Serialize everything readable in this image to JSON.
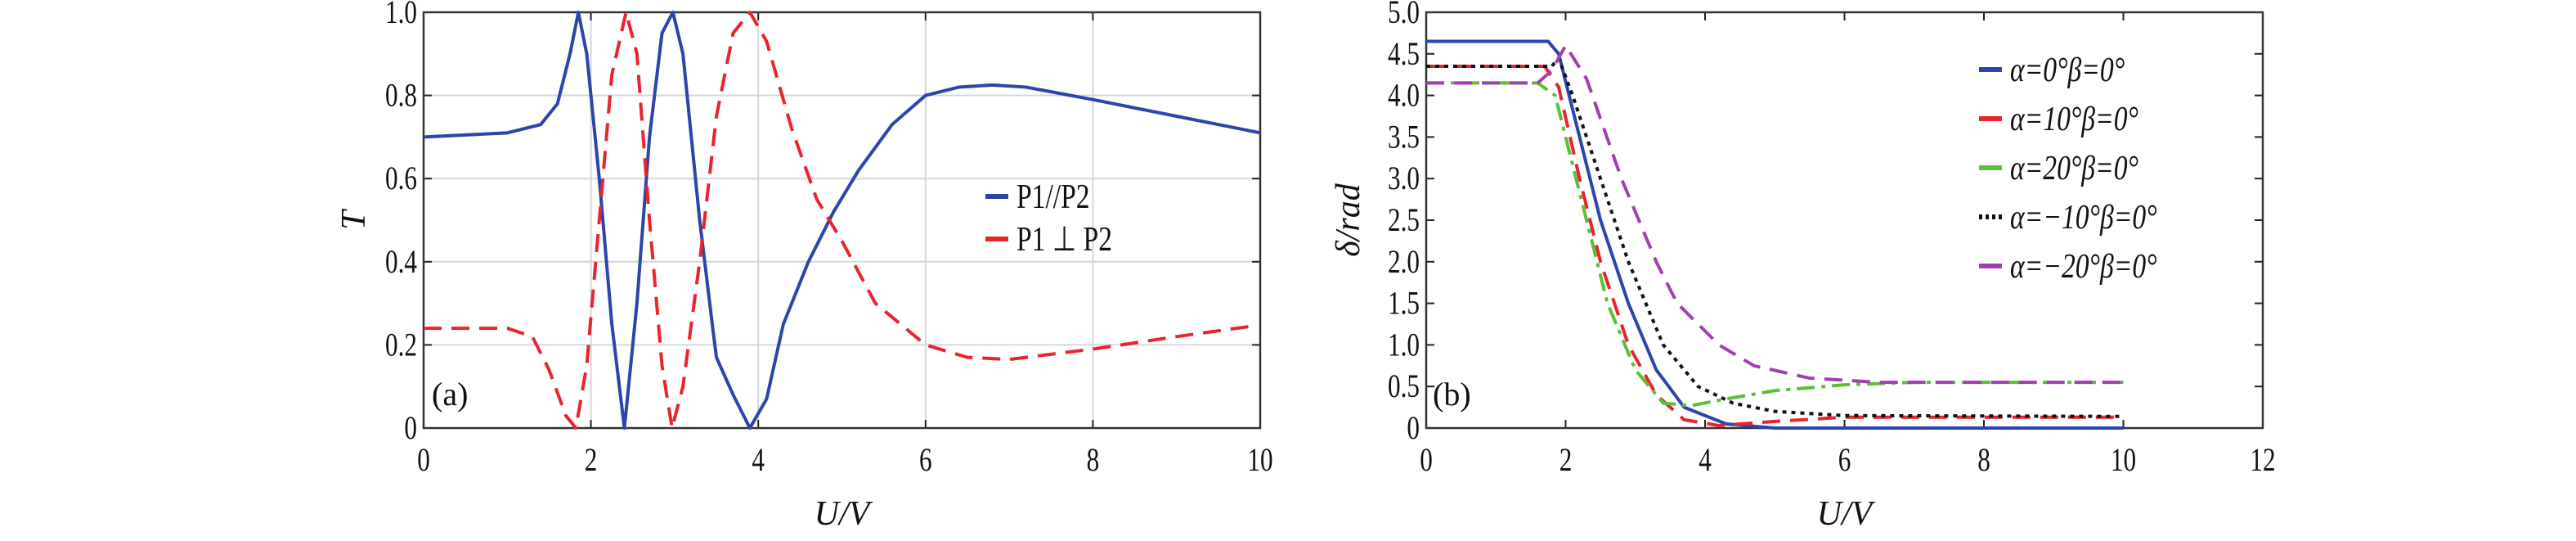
{
  "chart_data": [
    {
      "type": "line",
      "panel_label": "(a)",
      "xlabel": "U/V",
      "ylabel": "T",
      "xlim": [
        0,
        10
      ],
      "ylim": [
        0,
        1
      ],
      "xticks": [
        "0",
        "2",
        "4",
        "6",
        "8",
        "10"
      ],
      "yticks": [
        "0",
        "0.2",
        "0.4",
        "0.6",
        "0.8",
        "1.0"
      ],
      "grid": true,
      "legend_position": "center-right",
      "series": [
        {
          "name": "P1//P2",
          "color": "#2b45a8",
          "style": "solid",
          "x": [
            0,
            1,
            1.4,
            1.6,
            1.75,
            1.85,
            1.95,
            2.1,
            2.25,
            2.4,
            2.55,
            2.7,
            2.85,
            2.98,
            3.1,
            3.3,
            3.45,
            3.5,
            3.7,
            3.9,
            4.1,
            4.3,
            4.6,
            4.9,
            5.2,
            5.6,
            6,
            6.4,
            6.8,
            7.2,
            8,
            9,
            10
          ],
          "y": [
            0.7,
            0.71,
            0.73,
            0.78,
            0.9,
            1.0,
            0.9,
            0.6,
            0.25,
            0.0,
            0.3,
            0.7,
            0.95,
            1.0,
            0.9,
            0.5,
            0.25,
            0.17,
            0.08,
            0.0,
            0.07,
            0.25,
            0.4,
            0.52,
            0.62,
            0.73,
            0.8,
            0.82,
            0.825,
            0.82,
            0.79,
            0.75,
            0.71
          ]
        },
        {
          "name": "P1 ⊥ P2",
          "color": "#e8242e",
          "style": "dashed",
          "x": [
            0,
            1,
            1.3,
            1.5,
            1.7,
            1.82,
            1.95,
            2.1,
            2.25,
            2.42,
            2.55,
            2.7,
            2.85,
            2.97,
            3.1,
            3.3,
            3.5,
            3.7,
            3.9,
            4.1,
            4.4,
            4.7,
            5,
            5.4,
            6,
            6.5,
            7,
            8,
            9,
            9.9
          ],
          "y": [
            0.24,
            0.24,
            0.22,
            0.14,
            0.03,
            0.0,
            0.15,
            0.5,
            0.85,
            1.0,
            0.9,
            0.5,
            0.15,
            0.0,
            0.1,
            0.4,
            0.75,
            0.95,
            1.0,
            0.93,
            0.72,
            0.55,
            0.45,
            0.3,
            0.2,
            0.17,
            0.165,
            0.19,
            0.22,
            0.245
          ]
        }
      ]
    },
    {
      "type": "line",
      "panel_label": "(b)",
      "xlabel": "U/V",
      "ylabel": "δ/rad",
      "xlim": [
        0,
        12
      ],
      "ylim": [
        0,
        5
      ],
      "xticks": [
        "0",
        "2",
        "4",
        "6",
        "8",
        "10",
        "12"
      ],
      "yticks": [
        "0",
        "0.5",
        "1.0",
        "1.5",
        "2.0",
        "2.5",
        "3.0",
        "3.5",
        "4.0",
        "4.5",
        "5.0"
      ],
      "grid": false,
      "legend_position": "top-right",
      "series": [
        {
          "name": "α=0°β=0°",
          "color": "#2b45a8",
          "style": "solid",
          "x": [
            0,
            1.75,
            1.9,
            2.2,
            2.5,
            2.9,
            3.3,
            3.7,
            4.3,
            5,
            10
          ],
          "y": [
            4.65,
            4.65,
            4.5,
            3.5,
            2.5,
            1.5,
            0.7,
            0.25,
            0.05,
            0,
            0
          ]
        },
        {
          "name": "α=10°β=0°",
          "color": "#e8242e",
          "style": "dashed",
          "x": [
            0,
            1.7,
            1.9,
            2.2,
            2.5,
            2.9,
            3.3,
            3.7,
            4.2,
            5,
            6,
            10
          ],
          "y": [
            4.35,
            4.35,
            4.1,
            3.0,
            2.0,
            1.0,
            0.4,
            0.1,
            0.03,
            0.08,
            0.13,
            0.13
          ]
        },
        {
          "name": "α=20°β=0°",
          "color": "#5bbf3a",
          "style": "dashdot",
          "x": [
            0,
            1.6,
            1.85,
            2.0,
            2.3,
            2.6,
            3.0,
            3.4,
            3.8,
            4.3,
            5,
            6,
            7,
            10
          ],
          "y": [
            4.15,
            4.15,
            4.0,
            3.5,
            2.5,
            1.5,
            0.7,
            0.3,
            0.27,
            0.35,
            0.45,
            0.52,
            0.55,
            0.55
          ]
        },
        {
          "name": "α=−10°β=0°",
          "color": "#111111",
          "style": "dotted",
          "x": [
            0,
            1.8,
            1.9,
            2.1,
            2.5,
            2.9,
            3.4,
            3.9,
            4.4,
            5,
            6,
            10
          ],
          "y": [
            4.35,
            4.35,
            4.45,
            4.0,
            3.0,
            2.0,
            1.0,
            0.5,
            0.3,
            0.2,
            0.15,
            0.14
          ]
        },
        {
          "name": "α=−20°β=0°",
          "color": "#a040b0",
          "style": "dashed",
          "x": [
            0,
            1.6,
            1.8,
            2.0,
            2.3,
            2.8,
            3.3,
            3.6,
            4.2,
            4.7,
            5.5,
            6.5,
            10
          ],
          "y": [
            4.15,
            4.15,
            4.3,
            4.6,
            4.2,
            3.0,
            2.0,
            1.5,
            1.0,
            0.75,
            0.6,
            0.55,
            0.55
          ]
        }
      ]
    }
  ]
}
